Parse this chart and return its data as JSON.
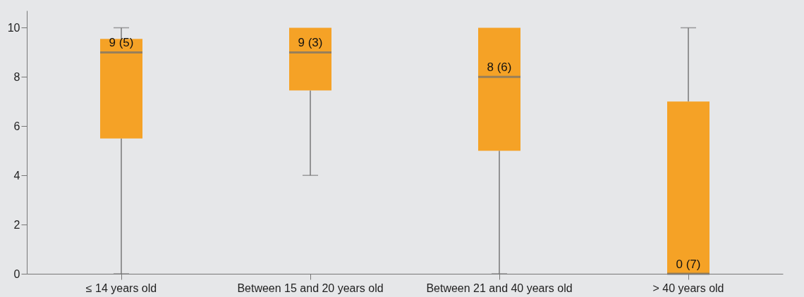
{
  "chart_data": {
    "type": "box",
    "categories": [
      "≤ 14 years old",
      "Between 15 and 20 years old",
      "Between 21 and 40 years old",
      "> 40 years old"
    ],
    "boxes": [
      {
        "low": 0,
        "q1": 5.5,
        "median": 9,
        "q3": 9.55,
        "high": 10
      },
      {
        "low": 4,
        "q1": 7.45,
        "median": 9,
        "q3": 10,
        "high": 10
      },
      {
        "low": 0,
        "q1": 5,
        "median": 8,
        "q3": 10,
        "high": 10
      },
      {
        "low": 0,
        "q1": 0,
        "median": 0,
        "q3": 7,
        "high": 10
      }
    ],
    "color": "#f5a226",
    "ylim": [
      0,
      10.7
    ],
    "yticks": [
      0,
      2,
      4,
      6,
      8,
      10
    ],
    "grid": false,
    "annotations": [
      {
        "text": "9 (5)",
        "x": "≤ 14 years old",
        "y": 9
      },
      {
        "text": "9 (3)",
        "x": "Between 15 and 20 years old",
        "y": 9
      },
      {
        "text": "8 (6)",
        "x": "Between 21 and 40 years old",
        "y": 8
      },
      {
        "text": "0 (7)",
        "x": "> 40 years old",
        "y": 0
      }
    ]
  }
}
